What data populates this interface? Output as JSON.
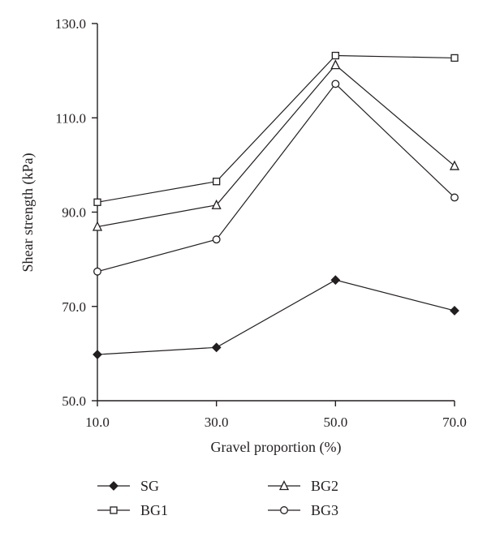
{
  "chart_data": {
    "type": "line",
    "title": "",
    "xlabel": "Gravel proportion (%)",
    "ylabel": "Shear strength (kPa)",
    "x": [
      10,
      30,
      50,
      70
    ],
    "x_tick_labels": [
      "10.0",
      "30.0",
      "50.0",
      "70.0"
    ],
    "xlim": [
      10,
      70
    ],
    "ylim": [
      50,
      130
    ],
    "y_ticks": [
      50,
      70,
      90,
      110,
      130
    ],
    "y_tick_labels": [
      "50.0",
      "70.0",
      "90.0",
      "110.0",
      "130.0"
    ],
    "grid": false,
    "legend_position": "bottom",
    "series": [
      {
        "name": "SG",
        "marker": "diamond-filled",
        "values": [
          59.8,
          61.3,
          75.6,
          69.1
        ]
      },
      {
        "name": "BG1",
        "marker": "square-open",
        "values": [
          92.1,
          96.5,
          123.2,
          122.7
        ]
      },
      {
        "name": "BG2",
        "marker": "triangle-open",
        "values": [
          86.9,
          91.5,
          121.2,
          99.8
        ]
      },
      {
        "name": "BG3",
        "marker": "circle-open",
        "values": [
          77.4,
          84.2,
          117.2,
          93.1
        ]
      }
    ],
    "colors": {
      "line": "#231f20",
      "marker_fill_open": "#ffffff",
      "marker_fill_solid": "#231f20"
    }
  }
}
